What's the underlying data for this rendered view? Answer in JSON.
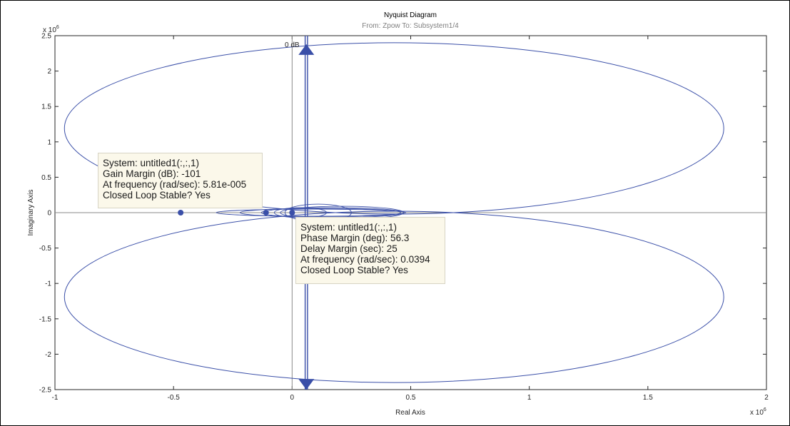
{
  "chart_data": {
    "type": "line",
    "title": "Nyquist Diagram",
    "subtitle": "From: Zpow  To: Subsystem1/4",
    "xlabel": "Real Axis",
    "ylabel": "Imaginary Axis",
    "xlim": [
      -1,
      2
    ],
    "ylim": [
      -2.5,
      2.5
    ],
    "x_exponent_label": "x 10",
    "x_exponent_power": "6",
    "y_exponent_label": "x 10",
    "y_exponent_power": "6",
    "x_ticks": [
      "-1",
      "-0.5",
      "0",
      "0.5",
      "1",
      "1.5",
      "2"
    ],
    "y_ticks": [
      "2.5",
      "2",
      "1.5",
      "1",
      "0.5",
      "0",
      "-0.5",
      "-1",
      "-1.5",
      "-2",
      "-2.5"
    ],
    "grid": false,
    "zero_db_label": "0 dB",
    "series_color": "#3a4fa8",
    "upper_loop": {
      "center": [
        0.43,
        1.19
      ],
      "rx": 1.39,
      "ry": 1.21
    },
    "lower_loop": {
      "center": [
        0.43,
        -1.19
      ],
      "rx": 1.39,
      "ry": 1.21
    },
    "vertical_branch_x": [
      0.055,
      0.065
    ],
    "markers": [
      {
        "name": "gain-margin",
        "x": -0.47,
        "y": 0
      },
      {
        "name": "crossing",
        "x": -0.11,
        "y": 0
      },
      {
        "name": "phase-margin",
        "x": 0.0,
        "y": 0
      }
    ],
    "arrows": [
      {
        "x": 0.06,
        "y": 2.3,
        "direction": "up"
      },
      {
        "x": 0.06,
        "y": -2.42,
        "direction": "down"
      }
    ]
  },
  "datatips": {
    "gain_margin": {
      "line1": "System: untitled1(:,:,1)",
      "line2": "Gain Margin (dB): -101",
      "line3": "At frequency (rad/sec): 5.81e-005",
      "line4": "Closed Loop Stable? Yes"
    },
    "phase_margin": {
      "line1": "System: untitled1(:,:,1)",
      "line2": "Phase Margin (deg): 56.3",
      "line3": "Delay Margin (sec): 25",
      "line4": "At frequency (rad/sec): 0.0394",
      "line5": "Closed Loop Stable? Yes"
    }
  }
}
